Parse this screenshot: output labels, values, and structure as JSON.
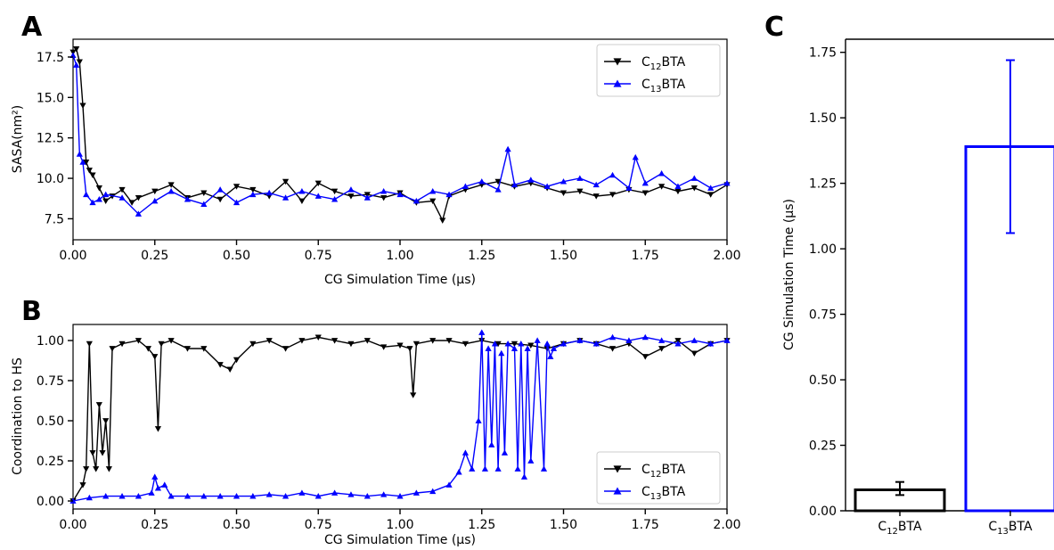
{
  "panels": {
    "a": "A",
    "b": "B",
    "c": "C"
  },
  "colors": {
    "c12": "#000000",
    "c13": "#0000ff"
  },
  "chart_data": [
    {
      "id": "A",
      "type": "line",
      "xlabel": "CG Simulation Time (μs)",
      "ylabel": "SASA(nm²)",
      "xlim": [
        0,
        2.0
      ],
      "ylim": [
        6.2,
        18.6
      ],
      "xticks": [
        "0.00",
        "0.25",
        "0.50",
        "0.75",
        "1.00",
        "1.25",
        "1.50",
        "1.75",
        "2.00"
      ],
      "yticks": [
        "7.5",
        "10.0",
        "12.5",
        "15.0",
        "17.5"
      ],
      "legend_loc": "top-right",
      "series": [
        {
          "name": "C12BTA",
          "legend": {
            "pre": "C",
            "sub": "12",
            "post": "BTA"
          },
          "marker": "triangle-down",
          "color": "#000000",
          "x": [
            0.0,
            0.01,
            0.02,
            0.03,
            0.04,
            0.05,
            0.06,
            0.08,
            0.1,
            0.12,
            0.15,
            0.18,
            0.2,
            0.25,
            0.3,
            0.35,
            0.4,
            0.45,
            0.5,
            0.55,
            0.6,
            0.65,
            0.7,
            0.75,
            0.8,
            0.85,
            0.9,
            0.95,
            1.0,
            1.05,
            1.1,
            1.13,
            1.15,
            1.2,
            1.25,
            1.3,
            1.35,
            1.4,
            1.45,
            1.5,
            1.55,
            1.6,
            1.65,
            1.7,
            1.75,
            1.8,
            1.85,
            1.9,
            1.95,
            2.0
          ],
          "y": [
            17.8,
            18.0,
            17.2,
            14.5,
            11.0,
            10.5,
            10.2,
            9.4,
            8.6,
            8.9,
            9.3,
            8.5,
            8.8,
            9.2,
            9.6,
            8.8,
            9.1,
            8.7,
            9.5,
            9.3,
            8.9,
            9.8,
            8.6,
            9.7,
            9.2,
            8.9,
            9.0,
            8.8,
            9.1,
            8.5,
            8.6,
            7.4,
            8.9,
            9.3,
            9.6,
            9.8,
            9.5,
            9.7,
            9.4,
            9.1,
            9.2,
            8.9,
            9.0,
            9.3,
            9.1,
            9.5,
            9.2,
            9.4,
            9.0,
            9.6
          ]
        },
        {
          "name": "C13BTA",
          "legend": {
            "pre": "C",
            "sub": "13",
            "post": "BTA"
          },
          "marker": "triangle-up",
          "color": "#0000ff",
          "x": [
            0.0,
            0.01,
            0.02,
            0.03,
            0.04,
            0.06,
            0.08,
            0.1,
            0.15,
            0.2,
            0.25,
            0.3,
            0.35,
            0.4,
            0.45,
            0.5,
            0.55,
            0.6,
            0.65,
            0.7,
            0.75,
            0.8,
            0.85,
            0.9,
            0.95,
            1.0,
            1.05,
            1.1,
            1.15,
            1.2,
            1.25,
            1.3,
            1.33,
            1.35,
            1.4,
            1.45,
            1.5,
            1.55,
            1.6,
            1.65,
            1.7,
            1.72,
            1.75,
            1.8,
            1.85,
            1.9,
            1.95,
            2.0
          ],
          "y": [
            17.6,
            17.0,
            11.5,
            11.0,
            9.0,
            8.5,
            8.7,
            9.0,
            8.8,
            7.8,
            8.6,
            9.2,
            8.7,
            8.4,
            9.3,
            8.5,
            9.0,
            9.1,
            8.8,
            9.2,
            8.9,
            8.7,
            9.3,
            8.8,
            9.2,
            9.0,
            8.6,
            9.2,
            9.0,
            9.5,
            9.8,
            9.3,
            11.8,
            9.6,
            9.9,
            9.5,
            9.8,
            10.0,
            9.6,
            10.2,
            9.4,
            11.3,
            9.7,
            10.3,
            9.5,
            10.0,
            9.4,
            9.7
          ]
        }
      ]
    },
    {
      "id": "B",
      "type": "line",
      "xlabel": "CG Simulation Time (μs)",
      "ylabel": "Coordination to HS",
      "xlim": [
        0,
        2.0
      ],
      "ylim": [
        -0.05,
        1.1
      ],
      "xticks": [
        "0.00",
        "0.25",
        "0.50",
        "0.75",
        "1.00",
        "1.25",
        "1.50",
        "1.75",
        "2.00"
      ],
      "yticks": [
        "0.00",
        "0.25",
        "0.50",
        "0.75",
        "1.00"
      ],
      "legend_loc": "bottom-right",
      "series": [
        {
          "name": "C12BTA",
          "legend": {
            "pre": "C",
            "sub": "12",
            "post": "BTA"
          },
          "marker": "triangle-down",
          "color": "#000000",
          "x": [
            0.0,
            0.03,
            0.04,
            0.05,
            0.06,
            0.07,
            0.08,
            0.09,
            0.1,
            0.11,
            0.12,
            0.15,
            0.2,
            0.23,
            0.25,
            0.26,
            0.27,
            0.3,
            0.35,
            0.4,
            0.45,
            0.48,
            0.5,
            0.55,
            0.6,
            0.65,
            0.7,
            0.75,
            0.8,
            0.85,
            0.9,
            0.95,
            1.0,
            1.03,
            1.04,
            1.05,
            1.1,
            1.15,
            1.2,
            1.25,
            1.3,
            1.35,
            1.4,
            1.45,
            1.5,
            1.55,
            1.6,
            1.65,
            1.7,
            1.75,
            1.8,
            1.85,
            1.9,
            1.95,
            2.0
          ],
          "y": [
            0.0,
            0.1,
            0.2,
            0.98,
            0.3,
            0.2,
            0.6,
            0.3,
            0.5,
            0.2,
            0.95,
            0.98,
            1.0,
            0.95,
            0.9,
            0.45,
            0.98,
            1.0,
            0.95,
            0.95,
            0.85,
            0.82,
            0.88,
            0.98,
            1.0,
            0.95,
            1.0,
            1.02,
            1.0,
            0.98,
            1.0,
            0.96,
            0.97,
            0.95,
            0.66,
            0.98,
            1.0,
            1.0,
            0.98,
            1.0,
            0.98,
            0.98,
            0.97,
            0.95,
            0.98,
            1.0,
            0.98,
            0.95,
            0.98,
            0.9,
            0.95,
            1.0,
            0.92,
            0.98,
            1.0
          ]
        },
        {
          "name": "C13BTA",
          "legend": {
            "pre": "C",
            "sub": "13",
            "post": "BTA"
          },
          "marker": "triangle-up",
          "color": "#0000ff",
          "x": [
            0.0,
            0.05,
            0.1,
            0.15,
            0.2,
            0.24,
            0.25,
            0.26,
            0.28,
            0.3,
            0.35,
            0.4,
            0.45,
            0.5,
            0.55,
            0.6,
            0.65,
            0.7,
            0.75,
            0.8,
            0.85,
            0.9,
            0.95,
            1.0,
            1.05,
            1.1,
            1.15,
            1.18,
            1.2,
            1.22,
            1.24,
            1.25,
            1.26,
            1.27,
            1.28,
            1.29,
            1.3,
            1.31,
            1.32,
            1.33,
            1.35,
            1.36,
            1.37,
            1.38,
            1.39,
            1.4,
            1.42,
            1.44,
            1.45,
            1.46,
            1.47,
            1.5,
            1.55,
            1.6,
            1.65,
            1.7,
            1.75,
            1.8,
            1.85,
            1.9,
            1.95,
            2.0
          ],
          "y": [
            0.0,
            0.02,
            0.03,
            0.03,
            0.03,
            0.05,
            0.15,
            0.08,
            0.1,
            0.03,
            0.03,
            0.03,
            0.03,
            0.03,
            0.03,
            0.04,
            0.03,
            0.05,
            0.03,
            0.05,
            0.04,
            0.03,
            0.04,
            0.03,
            0.05,
            0.06,
            0.1,
            0.18,
            0.3,
            0.2,
            0.5,
            1.05,
            0.2,
            0.95,
            0.35,
            0.98,
            0.2,
            0.92,
            0.3,
            0.98,
            0.95,
            0.2,
            0.98,
            0.15,
            0.95,
            0.25,
            1.0,
            0.2,
            0.98,
            0.9,
            0.95,
            0.98,
            1.0,
            0.98,
            1.02,
            1.0,
            1.02,
            1.0,
            0.98,
            1.0,
            0.98,
            1.0
          ]
        }
      ]
    },
    {
      "id": "C",
      "type": "bar",
      "xlabel": "",
      "ylabel": "CG Simulation Time (μs)",
      "ylim": [
        0,
        1.8
      ],
      "yticks": [
        "0.00",
        "0.25",
        "0.50",
        "0.75",
        "1.00",
        "1.25",
        "1.50",
        "1.75"
      ],
      "categories": [
        "C12BTA",
        "C13BTA"
      ],
      "category_labels": [
        {
          "pre": "C",
          "sub": "12",
          "post": "BTA"
        },
        {
          "pre": "C",
          "sub": "13",
          "post": "BTA"
        }
      ],
      "values": [
        0.08,
        1.39
      ],
      "errors": [
        [
          0.06,
          0.11
        ],
        [
          1.06,
          1.72
        ]
      ],
      "bar_colors": [
        "#000000",
        "#0000ff"
      ]
    }
  ]
}
